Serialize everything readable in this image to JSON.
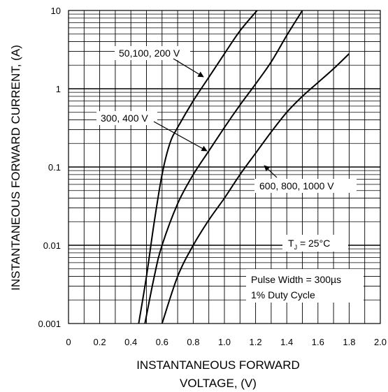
{
  "chart_data": {
    "type": "line",
    "y_scale": "log",
    "xlim": [
      0,
      2.0
    ],
    "ylim": [
      0.001,
      10
    ],
    "grid": true,
    "xlabel": [
      "INSTANTANEOUS FORWARD",
      "VOLTAGE, (V)"
    ],
    "ylabel": "INSTANTANEOUS FORWARD CURRENT,  (A)",
    "x_ticks": [
      "0",
      "0.2",
      "0.4",
      "0.6",
      "0.8",
      "1.0",
      "1.2",
      "1.4",
      "1.6",
      "1.8",
      "2.0"
    ],
    "y_ticks": [
      "0.001",
      "0.01",
      "0.1",
      "1",
      "10"
    ],
    "series": [
      {
        "name": "50,100, 200 V",
        "x": [
          0.45,
          0.5,
          0.55,
          0.6,
          0.65,
          0.7,
          0.8,
          0.9,
          1.0,
          1.1,
          1.21
        ],
        "y": [
          0.001,
          0.004,
          0.02,
          0.08,
          0.2,
          0.32,
          0.7,
          1.4,
          2.8,
          5.5,
          10
        ]
      },
      {
        "name": "300, 400 V",
        "x": [
          0.49,
          0.55,
          0.6,
          0.7,
          0.8,
          0.9,
          1.0,
          1.1,
          1.2,
          1.3,
          1.4,
          1.5
        ],
        "y": [
          0.001,
          0.004,
          0.01,
          0.034,
          0.08,
          0.16,
          0.32,
          0.62,
          1.15,
          2.2,
          4.8,
          10
        ]
      },
      {
        "name": "600, 800, 1000 V",
        "x": [
          0.6,
          0.7,
          0.8,
          0.9,
          1.0,
          1.1,
          1.2,
          1.3,
          1.4,
          1.5,
          1.6,
          1.7,
          1.8
        ],
        "y": [
          0.001,
          0.004,
          0.01,
          0.021,
          0.04,
          0.08,
          0.15,
          0.28,
          0.5,
          0.8,
          1.2,
          1.8,
          2.8
        ]
      }
    ],
    "annotations": [
      {
        "text": "50,100, 200 V",
        "points_to": [
          0.86,
          1.5
        ]
      },
      {
        "text": "300, 400 V",
        "points_to": [
          0.87,
          0.2
        ]
      },
      {
        "text": "600, 800, 1000 V",
        "points_to": [
          1.28,
          0.21
        ]
      },
      {
        "text": "TJ = 25°C"
      },
      {
        "text": "Pulse Width = 300µs"
      },
      {
        "text": "1% Duty Cycle"
      }
    ]
  }
}
